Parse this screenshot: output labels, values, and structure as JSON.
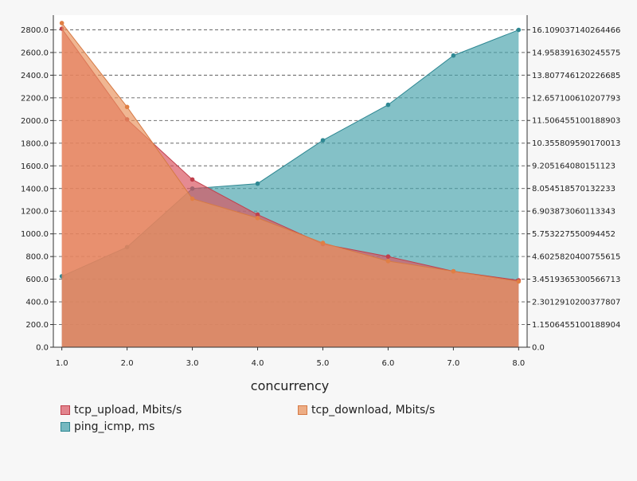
{
  "chart_data": {
    "type": "area",
    "xlabel": "concurrency",
    "x": [
      1.0,
      2.0,
      3.0,
      4.0,
      5.0,
      6.0,
      7.0,
      8.0
    ],
    "x_tick_labels": [
      "1.0",
      "2.0",
      "3.0",
      "4.0",
      "5.0",
      "6.0",
      "7.0",
      "8.0"
    ],
    "xlim": [
      0.87,
      8.13
    ],
    "ylim_left": [
      0,
      2930
    ],
    "y_left_ticks": [
      0,
      200,
      400,
      600,
      800,
      1000,
      1200,
      1400,
      1600,
      1800,
      2000,
      2200,
      2400,
      2600,
      2800
    ],
    "y_left_tick_labels": [
      "0.0",
      "200.0",
      "400.0",
      "600.0",
      "800.0",
      "1000.0",
      "1200.0",
      "1400.0",
      "1600.0",
      "1800.0",
      "2000.0",
      "2200.0",
      "2400.0",
      "2600.0",
      "2800.0"
    ],
    "ylim_right": [
      0,
      16.85
    ],
    "y_right_ticks": [
      0,
      1.15064551001889,
      2.301291020037781,
      3.451936530056671,
      4.602582040075562,
      5.753227550094452,
      6.903873060113343,
      8.054518570132233,
      9.205164080151123,
      10.355809590170013,
      11.506455100188903,
      12.657100610207793,
      13.807746120226685,
      14.958391630245575,
      16.109037140264466
    ],
    "y_right_tick_labels": [
      "0.0",
      "1.150645510018890 4",
      "2.3012910200377807",
      "3.451936530056671 3",
      "4.6025820400755615",
      "5.753227550094452",
      "6.903873060113343",
      "8.054518570132233",
      "9.205164080151123",
      "10.355809590170013",
      "11.506455100188903",
      "12.657100610207793",
      "13.807746120226685",
      "14.958391630245575",
      "16.109037140264466"
    ],
    "grid": true,
    "legend_placement": "bottom",
    "series": [
      {
        "name": "tcp_upload, Mbits/s",
        "axis": "left",
        "color": "#d9535f",
        "values": [
          2810,
          2010,
          1480,
          1170,
          910,
          800,
          670,
          590
        ]
      },
      {
        "name": "tcp_download, Mbits/s",
        "axis": "left",
        "color": "#e9945f",
        "values": [
          2860,
          2120,
          1310,
          1140,
          920,
          760,
          670,
          580
        ]
      },
      {
        "name": "ping_icmp, ms",
        "axis": "right",
        "color": "#4aa3ad",
        "values": [
          3.6,
          5.08,
          8.05,
          8.3,
          10.5,
          12.3,
          14.8,
          16.1
        ]
      }
    ]
  }
}
